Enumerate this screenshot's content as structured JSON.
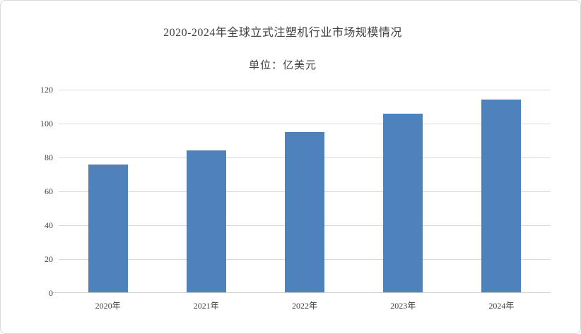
{
  "chart_data": {
    "type": "bar",
    "title": "2020-2024年全球立式注塑机行业市场规模情况",
    "subtitle": "单位：亿美元",
    "categories": [
      "2020年",
      "2021年",
      "2022年",
      "2023年",
      "2024年"
    ],
    "values": [
      76,
      84,
      95,
      106,
      114
    ],
    "xlabel": "",
    "ylabel": "",
    "ylim": [
      0,
      120
    ],
    "y_ticks": [
      0,
      20,
      40,
      60,
      80,
      100,
      120
    ],
    "grid": "horizontal",
    "legend_position": "none",
    "bar_color": "#4f81bd"
  },
  "colors": {
    "bar": "#4f81bd",
    "gridline": "#d9d9d9",
    "axis_line": "#d0d0d0",
    "text": "#404040",
    "border": "#d9d9d9",
    "background": "#ffffff"
  }
}
